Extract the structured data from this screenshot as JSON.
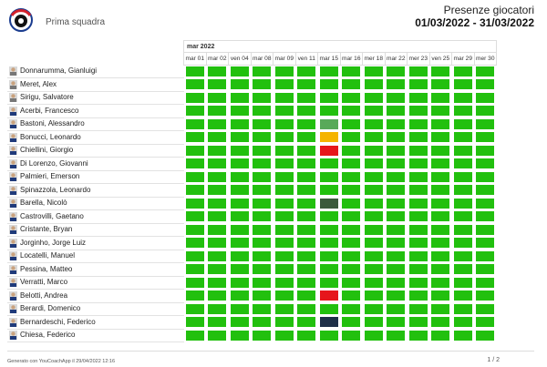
{
  "header": {
    "team_name": "Prima squadra",
    "title": "Presenze giocatori",
    "date_range": "01/03/2022 - 31/03/2022"
  },
  "table": {
    "month": "mar 2022",
    "days": [
      "mar 01",
      "mar 02",
      "ven 04",
      "mar 08",
      "mar 09",
      "ven 11",
      "mar 15",
      "mar 16",
      "mer 18",
      "mar 22",
      "mer 23",
      "ven 25",
      "mar 29",
      "mer 30"
    ],
    "players": [
      {
        "name": "Donnarumma, Gianluigi",
        "avatar": "#777777"
      },
      {
        "name": "Meret, Alex",
        "avatar": "#777777"
      },
      {
        "name": "Sirigu, Salvatore",
        "avatar": "#777777"
      },
      {
        "name": "Acerbi, Francesco",
        "avatar": "#1f3a7a"
      },
      {
        "name": "Bastoni, Alessandro",
        "avatar": "#1f3a7a"
      },
      {
        "name": "Bonucci, Leonardo",
        "avatar": "#1f3a7a"
      },
      {
        "name": "Chiellini, Giorgio",
        "avatar": "#1f3a7a"
      },
      {
        "name": "Di Lorenzo, Giovanni",
        "avatar": "#1f3a7a"
      },
      {
        "name": "Palmieri, Emerson",
        "avatar": "#1f3a7a"
      },
      {
        "name": "Spinazzola, Leonardo",
        "avatar": "#1f3a7a"
      },
      {
        "name": "Barella, Nicolò",
        "avatar": "#1f3a7a"
      },
      {
        "name": "Castrovilli, Gaetano",
        "avatar": "#1f3a7a"
      },
      {
        "name": "Cristante, Bryan",
        "avatar": "#1f3a7a"
      },
      {
        "name": "Jorginho, Jorge Luiz",
        "avatar": "#1f3a7a"
      },
      {
        "name": "Locatelli, Manuel",
        "avatar": "#1f3a7a"
      },
      {
        "name": "Pessina, Matteo",
        "avatar": "#1f3a7a"
      },
      {
        "name": "Verratti, Marco",
        "avatar": "#1f3a7a"
      },
      {
        "name": "Belotti, Andrea",
        "avatar": "#1f3a7a"
      },
      {
        "name": "Berardi, Domenico",
        "avatar": "#1f3a7a"
      },
      {
        "name": "Bernardeschi, Federico",
        "avatar": "#1f3a7a"
      },
      {
        "name": "Chiesa, Federico",
        "avatar": "#1f3a7a"
      }
    ],
    "colors": {
      "present": "#22c00e",
      "light": "#58a95a",
      "late": "#f5b400",
      "absent": "#e6161b",
      "dark": "#3c5a3c",
      "navy": "#1e2f48"
    },
    "exceptions": [
      {
        "row": 4,
        "col": 6,
        "status": "light"
      },
      {
        "row": 5,
        "col": 6,
        "status": "late"
      },
      {
        "row": 6,
        "col": 6,
        "status": "absent"
      },
      {
        "row": 10,
        "col": 6,
        "status": "dark"
      },
      {
        "row": 17,
        "col": 6,
        "status": "absent"
      },
      {
        "row": 19,
        "col": 6,
        "status": "navy"
      }
    ]
  },
  "footer": {
    "generated": "Generato con YouCoachApp il 29/04/2022 12:16",
    "page": "1 / 2"
  }
}
